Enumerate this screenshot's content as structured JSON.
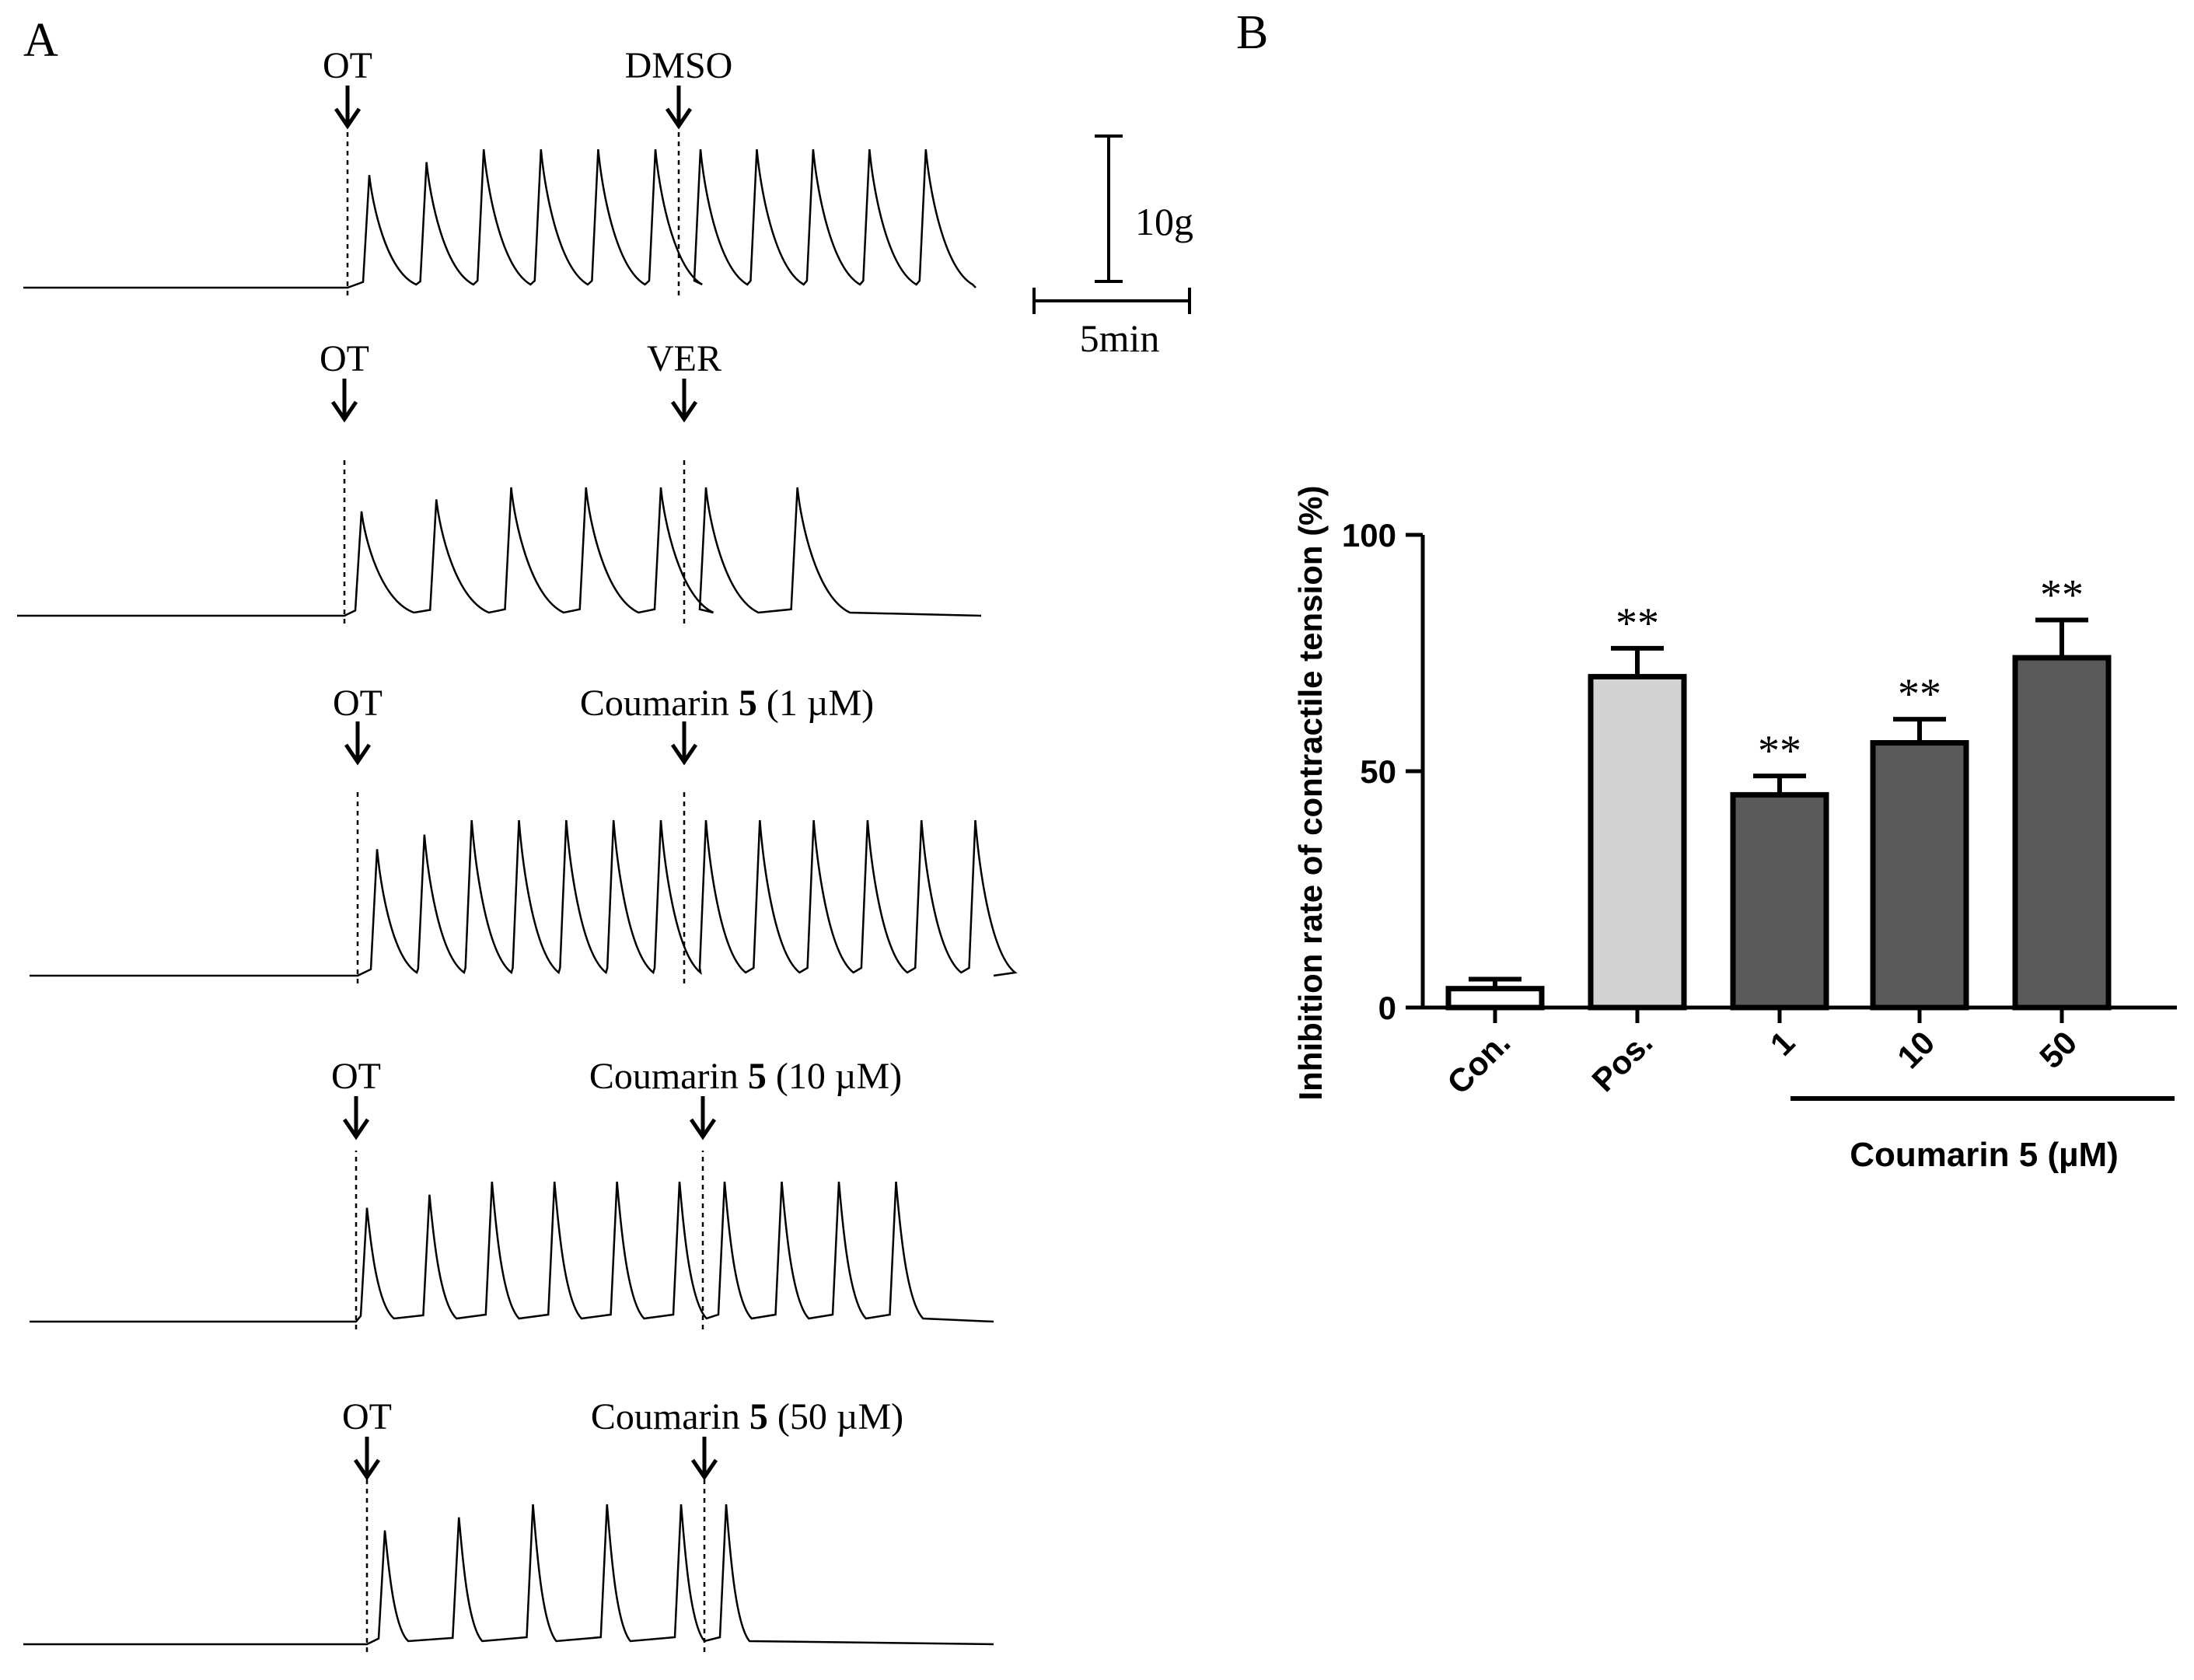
{
  "panels": {
    "a_label": "A",
    "b_label": "B"
  },
  "traces": [
    {
      "first_label": "OT",
      "second_label": "DMSO",
      "second_bold": "",
      "second_suffix": "",
      "peaks_before": 6,
      "peaks_after": 5
    },
    {
      "first_label": "OT",
      "second_label": "VER",
      "second_bold": "",
      "second_suffix": "",
      "peaks_before": 5,
      "peaks_after": 2
    },
    {
      "first_label": "OT",
      "second_label": "Coumarin ",
      "second_bold": "5",
      "second_suffix": " (1 µM)",
      "peaks_before": 7,
      "peaks_after": 6
    },
    {
      "first_label": "OT",
      "second_label": "Coumarin ",
      "second_bold": "5",
      "second_suffix": " (10 µM)",
      "peaks_before": 6,
      "peaks_after": 4
    },
    {
      "first_label": "OT",
      "second_label": "Coumarin ",
      "second_bold": "5",
      "second_suffix": " (50 µM)",
      "peaks_before": 5,
      "peaks_after": 1
    }
  ],
  "scale_bar": {
    "vertical_label": "10g",
    "horizontal_label": "5min"
  },
  "chart_data": {
    "type": "bar",
    "categories": [
      "Con.",
      "Pos.",
      "1",
      "10",
      "50"
    ],
    "values": [
      4,
      70,
      45,
      56,
      74
    ],
    "errors": [
      2,
      6,
      4,
      5,
      8
    ],
    "significance": [
      "",
      "**",
      "**",
      "**",
      "**"
    ],
    "colors": [
      "#ffffff",
      "#d3d3d3",
      "#5a5a5a",
      "#5a5a5a",
      "#5a5a5a"
    ],
    "ylabel": "Inhibition rate of contractile tension (%)",
    "xlabel": "",
    "ylim": [
      0,
      100
    ],
    "yticks": [
      0,
      50,
      100
    ],
    "group_label": "Coumarin ",
    "group_label_bold": "5",
    "group_label_suffix": " (µM)"
  }
}
